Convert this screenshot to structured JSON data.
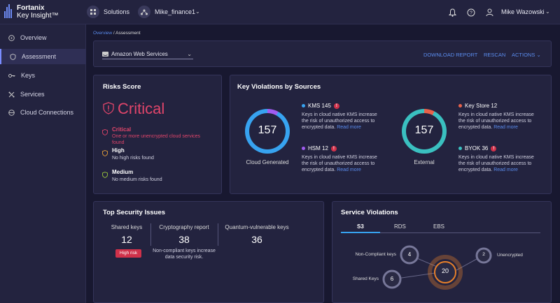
{
  "topbar": {
    "brand_name": "Fortanix",
    "brand_product": "Key Insight™",
    "solutions_label": "Solutions",
    "account_label": "Mike_finance1",
    "user_name": "Mike Wazowski"
  },
  "sidebar": {
    "items": [
      {
        "label": "Overview"
      },
      {
        "label": "Assessment"
      },
      {
        "label": "Keys"
      },
      {
        "label": "Services"
      },
      {
        "label": "Cloud Connections"
      }
    ]
  },
  "breadcrumb": {
    "root": "Overview",
    "sep": " / ",
    "current": "Assessment"
  },
  "toolbar": {
    "cloud_select": "Amazon Web Services",
    "download": "DOWNLOAD REPORT",
    "rescan": "RESCAN",
    "actions": "ACTIONS"
  },
  "risk": {
    "title": "Risks Score",
    "level": "Critical",
    "rows": [
      {
        "label": "Critical",
        "desc": "One or more unencrypted cloud services found",
        "color": "#e0456a"
      },
      {
        "label": "High",
        "desc": "No high risks found",
        "color": "#e8a23a"
      },
      {
        "label": "Medium",
        "desc": "No medium risks found",
        "color": "#9ac83c"
      }
    ]
  },
  "violations": {
    "title": "Key Violations by Sources",
    "cloud": {
      "value": "157",
      "label": "Cloud Generated"
    },
    "external": {
      "value": "157",
      "label": "External"
    },
    "desc": "Keys in cloud native KMS increase the risk of unauthorized access to encrypted data.",
    "read_more": "Read more",
    "items": [
      {
        "label": "KMS 145",
        "color": "#37a3f0"
      },
      {
        "label": "HSM 12",
        "color": "#a05cf0"
      },
      {
        "label": "Key Store 12",
        "color": "#e8624a"
      },
      {
        "label": "BYOK 36",
        "color": "#3ac0c0"
      }
    ],
    "warn_glyph": "!"
  },
  "top_issues": {
    "title": "Top Security Issues",
    "cols": [
      {
        "label": "Shared keys",
        "value": "12",
        "badge": "High risk"
      },
      {
        "label": "Cryptography report",
        "value": "38",
        "note": "Non-compliant keys increase data security risk."
      },
      {
        "label": "Quantum-vulnerable keys",
        "value": "36"
      }
    ]
  },
  "service_violations": {
    "title": "Service Violations",
    "tabs": [
      "S3",
      "RDS",
      "EBS"
    ],
    "nodes": {
      "center": "20",
      "noncompliant": {
        "label": "Non-Compliant keys",
        "value": "4"
      },
      "unencrypted": {
        "label": "Unencrypted",
        "value": "2"
      },
      "shared": {
        "label": "Shared Keys",
        "value": "6"
      }
    }
  }
}
